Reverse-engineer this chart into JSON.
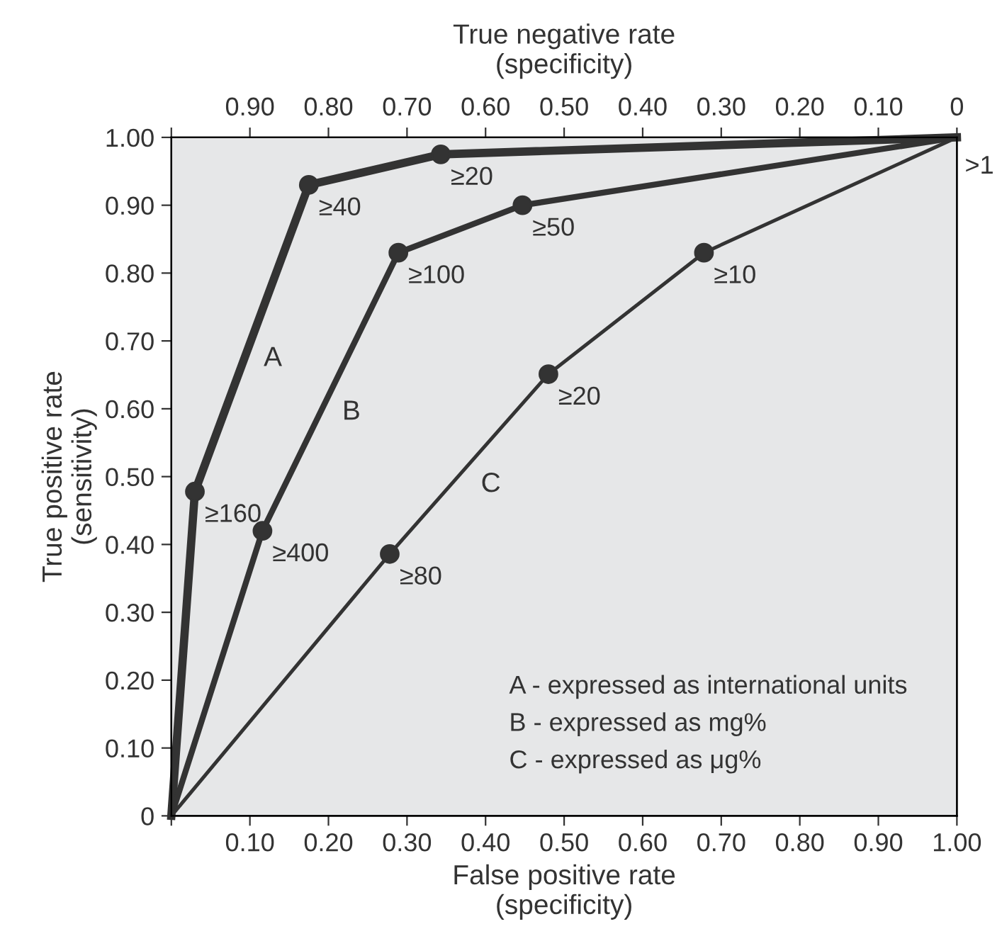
{
  "chart_data": {
    "type": "line",
    "xlabel": "False positive rate\n(specificity)",
    "ylabel": "True positive rate\n(sensitivity)",
    "x2label": "True negative rate\n(specificity)",
    "series": [
      {
        "name": "A",
        "color": "#333333",
        "x": [
          0,
          0.03,
          0.175,
          0.343,
          1
        ],
        "values": [
          0,
          0.478,
          0.93,
          0.975,
          1
        ]
      },
      {
        "name": "B",
        "color": "#333333",
        "x": [
          0,
          0.116,
          0.289,
          0.447,
          1
        ],
        "values": [
          0,
          0.42,
          0.83,
          0.9,
          1
        ]
      },
      {
        "name": "C",
        "color": "#333333",
        "x": [
          0,
          0.278,
          0.48,
          0.678,
          1
        ],
        "values": [
          0,
          0.386,
          0.651,
          0.83,
          1
        ]
      }
    ],
    "xlim": [
      0,
      1
    ],
    "ylim": [
      0,
      1
    ],
    "xticks": [
      {
        "value": 0,
        "label": null
      },
      {
        "value": 0.1,
        "label": "0.10"
      },
      {
        "value": 0.2,
        "label": "0.20"
      },
      {
        "value": 0.3,
        "label": "0.30"
      },
      {
        "value": 0.4,
        "label": "0.40"
      },
      {
        "value": 0.5,
        "label": "0.50"
      },
      {
        "value": 0.6,
        "label": "0.60"
      },
      {
        "value": 0.7,
        "label": "0.70"
      },
      {
        "value": 0.8,
        "label": "0.80"
      },
      {
        "value": 0.9,
        "label": "0.90"
      },
      {
        "value": 1,
        "label": "1.00"
      }
    ],
    "yticks": [
      0,
      {
        "value": 0.1,
        "label": "0.10"
      },
      {
        "value": 0.2,
        "label": "0.20"
      },
      {
        "value": 0.3,
        "label": "0.30"
      },
      {
        "value": 0.4,
        "label": "0.40"
      },
      {
        "value": 0.5,
        "label": "0.50"
      },
      {
        "value": 0.6,
        "label": "0.60"
      },
      {
        "value": 0.7,
        "label": "0.70"
      },
      {
        "value": 0.8,
        "label": "0.80"
      },
      {
        "value": 0.9,
        "label": "0.90"
      },
      {
        "value": 1,
        "label": "1.00"
      }
    ],
    "x2lim": [
      1,
      0
    ],
    "x2ticks": [
      {
        "value": 1,
        "label": null
      },
      {
        "value": 0.9,
        "label": "0.90"
      },
      {
        "value": 0.8,
        "label": "0.80"
      },
      {
        "value": 0.7,
        "label": "0.70"
      },
      {
        "value": 0.6,
        "label": "0.60"
      },
      {
        "value": 0.5,
        "label": "0.50"
      },
      {
        "value": 0.4,
        "label": "0.40"
      },
      {
        "value": 0.3,
        "label": "0.30"
      },
      {
        "value": 0.2,
        "label": "0.20"
      },
      {
        "value": 0.1,
        "label": "0.10"
      },
      0
    ],
    "marker": "circle",
    "line_style": "solid",
    "grid": false,
    "legend": false,
    "annotations": [
      {
        "text": "≥160",
        "x": 0.03,
        "y": 0.478
      },
      {
        "text": "≥40",
        "x": 0.175,
        "y": 0.93
      },
      {
        "text": "≥20",
        "x": 0.343,
        "y": 0.975
      },
      {
        "text": "≥400",
        "x": 0.116,
        "y": 0.42
      },
      {
        "text": "≥100",
        "x": 0.289,
        "y": 0.83
      },
      {
        "text": "≥50",
        "x": 0.447,
        "y": 0.9
      },
      {
        "text": "≥80",
        "x": 0.278,
        "y": 0.386
      },
      {
        "text": "≥20",
        "x": 0.48,
        "y": 0.651
      },
      {
        "text": "≥10",
        "x": 0.678,
        "y": 0.83
      },
      {
        "text": ">1",
        "x": 1,
        "y": 1
      },
      "A - expressed as international units",
      "B - expressed as mg%",
      "C - expressed as μg%"
    ]
  }
}
